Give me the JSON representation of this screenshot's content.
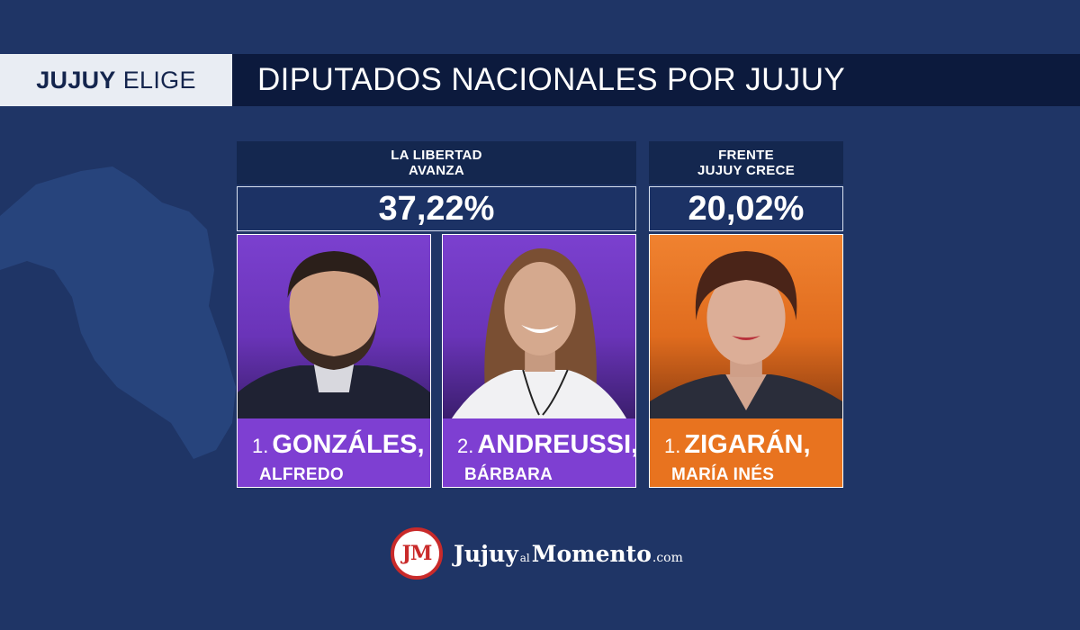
{
  "header": {
    "brand_bold": "JUJUY",
    "brand_light": "ELIGE",
    "headline": "DIPUTADOS NACIONALES POR JUJUY"
  },
  "parties": [
    {
      "name_line1": "LA LIBERTAD",
      "name_line2": "AVANZA",
      "percent": "37,22%",
      "color": "#7e3fd2"
    },
    {
      "name_line1": "FRENTE",
      "name_line2": "JUJUY CRECE",
      "percent": "20,02%",
      "color": "#e8731f"
    }
  ],
  "candidates": [
    {
      "number": "1.",
      "surname": "GONZÁLES,",
      "first_name": "ALFREDO",
      "party_color": "#7e3fd2"
    },
    {
      "number": "2.",
      "surname": "ANDREUSSI,",
      "first_name": "BÁRBARA",
      "party_color": "#7e3fd2"
    },
    {
      "number": "1.",
      "surname": "ZIGARÁN,",
      "first_name": "MARÍA INÉS",
      "party_color": "#e8731f"
    }
  ],
  "footer": {
    "logo_initials": "JM",
    "logo_word1": "Jujuy",
    "logo_word2": "al",
    "logo_word3": "Momento",
    "logo_domain": ".com"
  }
}
